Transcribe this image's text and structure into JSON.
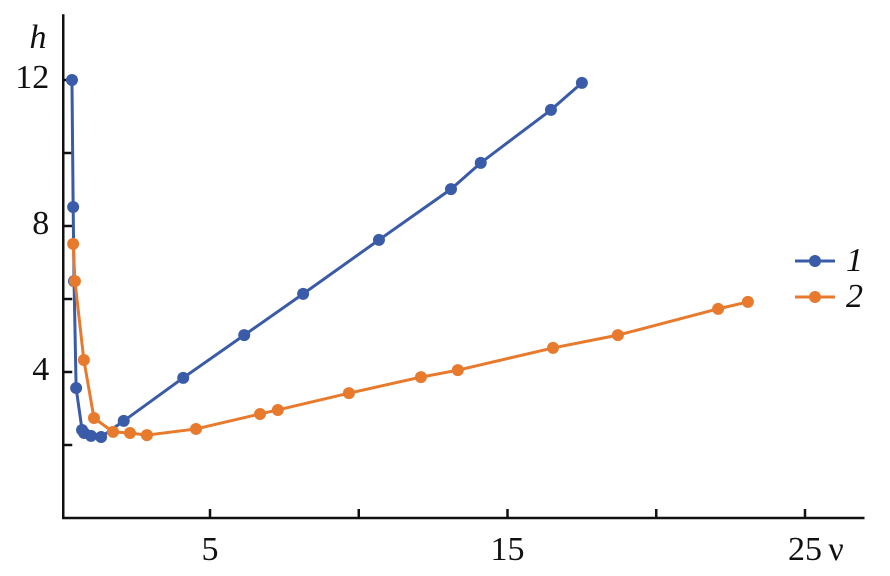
{
  "chart_data": {
    "type": "line",
    "x_label": "ν",
    "y_label": "h",
    "xlim": [
      0,
      27
    ],
    "ylim": [
      0,
      13.8
    ],
    "xticks": [
      5,
      15,
      25
    ],
    "yticks": [
      4,
      8,
      12
    ],
    "xminorticks": [
      10,
      20
    ],
    "yminorticks": [
      2,
      6,
      10
    ],
    "legend": "right",
    "series": [
      {
        "name": "1",
        "color": "#3a5ba8",
        "x": [
          0.36,
          0.4,
          0.43,
          0.5,
          0.7,
          0.77,
          1.0,
          1.34,
          2.1,
          4.1,
          6.15,
          8.13,
          10.68,
          13.1,
          14.1,
          16.46,
          17.5
        ],
        "values": [
          12,
          8.52,
          6.49,
          3.56,
          2.41,
          2.33,
          2.25,
          2.22,
          2.66,
          3.84,
          5.01,
          6.14,
          7.62,
          9.01,
          9.73,
          11.18,
          11.92
        ]
      },
      {
        "name": "2",
        "color": "#e87a2e",
        "x": [
          0.4,
          0.46,
          0.76,
          1.1,
          1.74,
          2.31,
          2.88,
          4.53,
          6.68,
          7.28,
          9.67,
          12.09,
          13.33,
          16.53,
          18.71,
          22.08,
          23.08
        ],
        "values": [
          7.51,
          6.49,
          4.33,
          2.74,
          2.36,
          2.33,
          2.27,
          2.44,
          2.85,
          2.96,
          3.42,
          3.86,
          4.05,
          4.66,
          5.01,
          5.73,
          5.92
        ]
      }
    ]
  }
}
